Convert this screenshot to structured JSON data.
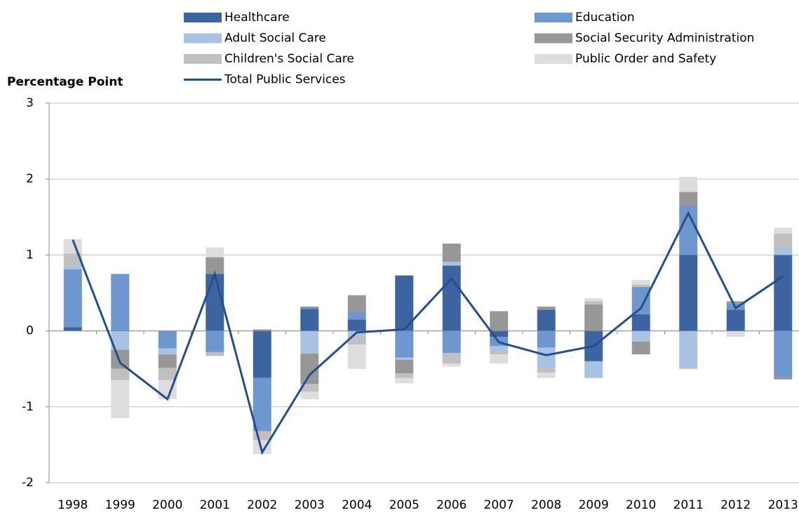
{
  "chart_data": {
    "type": "bar",
    "stacked": true,
    "y_label": "Percentage Point",
    "categories": [
      "1998",
      "1999",
      "2000",
      "2001",
      "2002",
      "2003",
      "2004",
      "2005",
      "2006",
      "2007",
      "2008",
      "2009",
      "2010",
      "2011",
      "2012",
      "2013"
    ],
    "series": [
      {
        "name": "Healthcare",
        "color": "#3c64a0",
        "values": [
          0.05,
          0,
          0,
          0.75,
          -0.62,
          0.29,
          0.15,
          0.73,
          0.86,
          -0.08,
          0.28,
          -0.4,
          0.22,
          1.0,
          0.28,
          1.0
        ]
      },
      {
        "name": "Education",
        "color": "#6e96cf",
        "values": [
          0.76,
          0.75,
          -0.23,
          -0.28,
          -0.7,
          0.03,
          0.1,
          -0.35,
          -0.29,
          -0.12,
          -0.22,
          0,
          0.36,
          0.65,
          0.08,
          -0.6
        ]
      },
      {
        "name": "Adult Social Care",
        "color": "#a9c2e4",
        "values": [
          0.04,
          -0.25,
          -0.08,
          0,
          0,
          -0.3,
          -0.06,
          -0.03,
          0.05,
          -0.06,
          -0.27,
          -0.22,
          -0.14,
          -0.5,
          0,
          0.1
        ]
      },
      {
        "name": "Social Security Administration",
        "color": "#979797",
        "values": [
          0,
          -0.25,
          -0.18,
          0.22,
          0.02,
          -0.4,
          0.22,
          -0.18,
          0.24,
          0.26,
          0.04,
          0.35,
          -0.17,
          0.18,
          0.03,
          -0.04
        ]
      },
      {
        "name": "Children's Social Care",
        "color": "#c0c0c0",
        "values": [
          0.17,
          -0.15,
          -0.16,
          -0.05,
          -0.12,
          -0.1,
          -0.12,
          -0.06,
          -0.14,
          -0.05,
          -0.06,
          0.04,
          0.03,
          0,
          0,
          0.18
        ]
      },
      {
        "name": "Public Order and Safety",
        "color": "#dddddd",
        "values": [
          0.19,
          -0.5,
          -0.25,
          0.13,
          -0.18,
          -0.1,
          -0.32,
          -0.07,
          -0.04,
          -0.12,
          -0.07,
          0.04,
          0.06,
          0.2,
          -0.08,
          0.08
        ]
      },
      {
        "name": "Total Public Services",
        "type": "line",
        "color": "#254f8a",
        "values": [
          1.2,
          -0.42,
          -0.9,
          0.75,
          -1.6,
          -0.58,
          -0.02,
          0.02,
          0.69,
          -0.15,
          -0.32,
          -0.2,
          0.3,
          1.55,
          0.3,
          0.72
        ]
      }
    ],
    "ylim": [
      -2,
      3
    ],
    "yticks": [
      -2,
      -1,
      0,
      1,
      2,
      3
    ],
    "grid": true
  }
}
